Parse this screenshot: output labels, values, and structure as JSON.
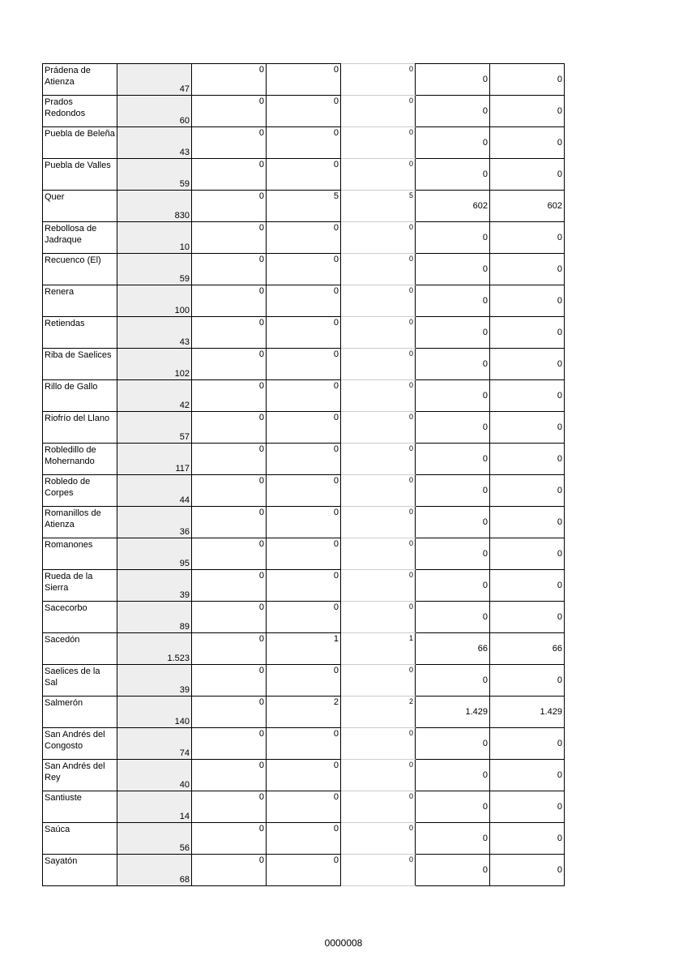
{
  "rows": [
    [
      "Prádena de Atienza",
      "47",
      "0",
      "0",
      "0",
      "0",
      "0"
    ],
    [
      "Prados Redondos",
      "60",
      "0",
      "0",
      "0",
      "0",
      "0"
    ],
    [
      "Puebla de Beleña",
      "43",
      "0",
      "0",
      "0",
      "0",
      "0"
    ],
    [
      "Puebla de Valles",
      "59",
      "0",
      "0",
      "0",
      "0",
      "0"
    ],
    [
      "Quer",
      "830",
      "0",
      "5",
      "5",
      "602",
      "602"
    ],
    [
      "Rebollosa de Jadraque",
      "10",
      "0",
      "0",
      "0",
      "0",
      "0"
    ],
    [
      "Recuenco (El)",
      "59",
      "0",
      "0",
      "0",
      "0",
      "0"
    ],
    [
      "Renera",
      "100",
      "0",
      "0",
      "0",
      "0",
      "0"
    ],
    [
      "Retiendas",
      "43",
      "0",
      "0",
      "0",
      "0",
      "0"
    ],
    [
      "Riba de Saelices",
      "102",
      "0",
      "0",
      "0",
      "0",
      "0"
    ],
    [
      "Rillo de Gallo",
      "42",
      "0",
      "0",
      "0",
      "0",
      "0"
    ],
    [
      "Riofrío del Llano",
      "57",
      "0",
      "0",
      "0",
      "0",
      "0"
    ],
    [
      "Robledillo de Mohernando",
      "117",
      "0",
      "0",
      "0",
      "0",
      "0"
    ],
    [
      "Robledo de Corpes",
      "44",
      "0",
      "0",
      "0",
      "0",
      "0"
    ],
    [
      "Romanillos de Atienza",
      "36",
      "0",
      "0",
      "0",
      "0",
      "0"
    ],
    [
      "Romanones",
      "95",
      "0",
      "0",
      "0",
      "0",
      "0"
    ],
    [
      "Rueda de la Sierra",
      "39",
      "0",
      "0",
      "0",
      "0",
      "0"
    ],
    [
      "Sacecorbo",
      "89",
      "0",
      "0",
      "0",
      "0",
      "0"
    ],
    [
      "Sacedón",
      "1.523",
      "0",
      "1",
      "1",
      "66",
      "66"
    ],
    [
      "Saelices de la Sal",
      "39",
      "0",
      "0",
      "0",
      "0",
      "0"
    ],
    [
      "Salmerón",
      "140",
      "0",
      "2",
      "2",
      "1.429",
      "1.429"
    ],
    [
      "San Andrés del Congosto",
      "74",
      "0",
      "0",
      "0",
      "0",
      "0"
    ],
    [
      "San Andrés del Rey",
      "40",
      "0",
      "0",
      "0",
      "0",
      "0"
    ],
    [
      "Santiuste",
      "14",
      "0",
      "0",
      "0",
      "0",
      "0"
    ],
    [
      "Saúca",
      "56",
      "0",
      "0",
      "0",
      "0",
      "0"
    ],
    [
      "Sayatón",
      "68",
      "0",
      "0",
      "0",
      "0",
      "0"
    ]
  ],
  "footer": "0000008"
}
